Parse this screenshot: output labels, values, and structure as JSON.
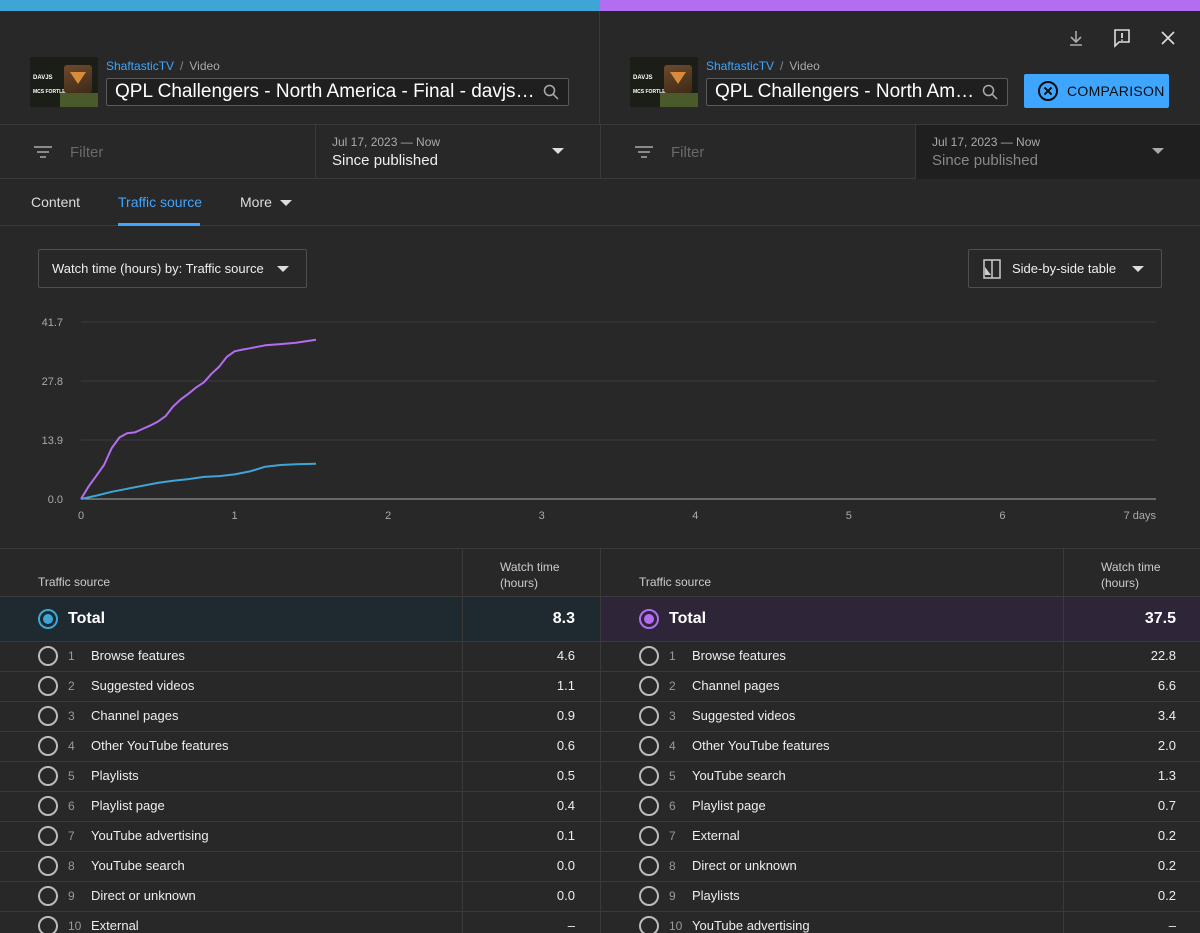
{
  "colors": {
    "left": "#3ea6d6",
    "right": "#b36df0",
    "accent": "#3ea6ff"
  },
  "icons": {
    "download": "download-icon",
    "feedback": "feedback-icon",
    "close": "close-icon"
  },
  "left": {
    "channel": "ShaftasticTV",
    "crumb_sep": "/",
    "crumb_type": "Video",
    "title": "QPL Challengers - North America - Final - davjs vs MCS Fortless",
    "thumb_lines": [
      "DAVJS",
      "MCS FORTLESS"
    ],
    "filter_placeholder": "Filter",
    "date_range": "Jul 17, 2023 — Now",
    "date_label": "Since published"
  },
  "right": {
    "channel": "ShaftasticTV",
    "crumb_sep": "/",
    "crumb_type": "Video",
    "title": "QPL Challengers - North America - Final - davjs vs MCS Fortless",
    "thumb_lines": [
      "DAVJS",
      "MCS FORTLESS"
    ],
    "filter_placeholder": "Filter",
    "date_range": "Jul 17, 2023 — Now",
    "date_label": "Since published"
  },
  "comparison_button": "COMPARISON",
  "tabs": {
    "content": "Content",
    "traffic": "Traffic source",
    "more": "More"
  },
  "metric_dropdown": "Watch time (hours) by: Traffic source",
  "view_dropdown": "Side-by-side table",
  "chart_data": {
    "type": "line",
    "xlabel": "",
    "ylabel": "",
    "xlim": [
      0,
      7
    ],
    "ylim": [
      0,
      41.7
    ],
    "yticks": [
      "0.0",
      "13.9",
      "27.8",
      "41.7"
    ],
    "xticks": [
      "0",
      "1",
      "2",
      "3",
      "4",
      "5",
      "6",
      "7 days"
    ],
    "series": [
      {
        "color": "#3ea6d6",
        "x": [
          0,
          0.1,
          0.2,
          0.3,
          0.4,
          0.5,
          0.6,
          0.7,
          0.8,
          0.9,
          1.0,
          1.1,
          1.2,
          1.3,
          1.4,
          1.53
        ],
        "y": [
          0,
          0.8,
          1.7,
          2.4,
          3.1,
          3.8,
          4.3,
          4.7,
          5.2,
          5.4,
          5.8,
          6.5,
          7.6,
          8.0,
          8.2,
          8.3
        ]
      },
      {
        "color": "#b36df0",
        "x": [
          0,
          0.05,
          0.1,
          0.15,
          0.2,
          0.25,
          0.3,
          0.35,
          0.4,
          0.45,
          0.5,
          0.55,
          0.6,
          0.65,
          0.7,
          0.75,
          0.8,
          0.85,
          0.9,
          0.95,
          1.0,
          1.05,
          1.1,
          1.2,
          1.3,
          1.4,
          1.53
        ],
        "y": [
          0,
          3,
          5.5,
          8,
          12,
          14.5,
          15.5,
          15.7,
          16.5,
          17.3,
          18.2,
          19.5,
          21.8,
          23.5,
          24.8,
          26.3,
          27.5,
          29.5,
          31.2,
          33.5,
          34.8,
          35.2,
          35.5,
          36.2,
          36.5,
          36.8,
          37.5
        ]
      }
    ]
  },
  "table": {
    "source_header": "Traffic source",
    "value_header_1": "Watch time",
    "value_header_2": "(hours)",
    "left": {
      "total_label": "Total",
      "total": "8.3",
      "rows": [
        {
          "idx": "1",
          "src": "Browse features",
          "val": "4.6"
        },
        {
          "idx": "2",
          "src": "Suggested videos",
          "val": "1.1"
        },
        {
          "idx": "3",
          "src": "Channel pages",
          "val": "0.9"
        },
        {
          "idx": "4",
          "src": "Other YouTube features",
          "val": "0.6"
        },
        {
          "idx": "5",
          "src": "Playlists",
          "val": "0.5"
        },
        {
          "idx": "6",
          "src": "Playlist page",
          "val": "0.4"
        },
        {
          "idx": "7",
          "src": "YouTube advertising",
          "val": "0.1"
        },
        {
          "idx": "8",
          "src": "YouTube search",
          "val": "0.0"
        },
        {
          "idx": "9",
          "src": "Direct or unknown",
          "val": "0.0"
        },
        {
          "idx": "10",
          "src": "External",
          "val": "–"
        }
      ]
    },
    "right": {
      "total_label": "Total",
      "total": "37.5",
      "rows": [
        {
          "idx": "1",
          "src": "Browse features",
          "val": "22.8"
        },
        {
          "idx": "2",
          "src": "Channel pages",
          "val": "6.6"
        },
        {
          "idx": "3",
          "src": "Suggested videos",
          "val": "3.4"
        },
        {
          "idx": "4",
          "src": "Other YouTube features",
          "val": "2.0"
        },
        {
          "idx": "5",
          "src": "YouTube search",
          "val": "1.3"
        },
        {
          "idx": "6",
          "src": "Playlist page",
          "val": "0.7"
        },
        {
          "idx": "7",
          "src": "External",
          "val": "0.2"
        },
        {
          "idx": "8",
          "src": "Direct or unknown",
          "val": "0.2"
        },
        {
          "idx": "9",
          "src": "Playlists",
          "val": "0.2"
        },
        {
          "idx": "10",
          "src": "YouTube advertising",
          "val": "–"
        }
      ]
    }
  }
}
